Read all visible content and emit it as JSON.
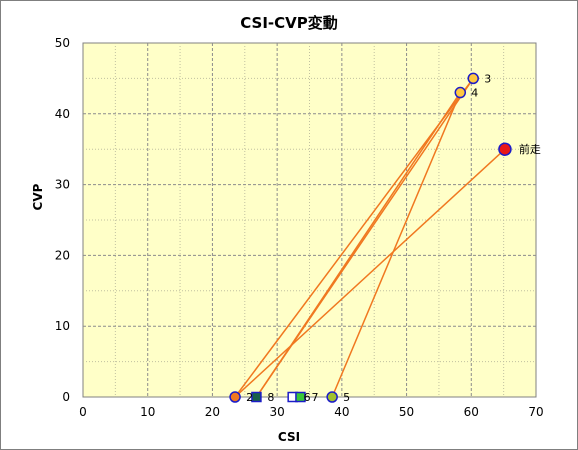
{
  "chart_data": {
    "type": "scatter",
    "title": "CSI-CVP変動",
    "xlabel": "CSI",
    "ylabel": "CVP",
    "xlim": [
      0,
      70
    ],
    "ylim": [
      0,
      50
    ],
    "xticks": [
      "0",
      "10",
      "20",
      "30",
      "40",
      "50",
      "60",
      "70"
    ],
    "yticks": [
      "0",
      "10",
      "20",
      "30",
      "40",
      "50"
    ],
    "grid": true,
    "plot_background": "#ffffc8",
    "line_color": "#f07820",
    "path_order": [
      "前走",
      "2",
      "3",
      "8",
      "4",
      "5"
    ],
    "points": [
      {
        "label": "前走",
        "x": 65.2,
        "y": 35,
        "marker": "circle",
        "fill": "#e81818",
        "stroke": "#1c1cc8"
      },
      {
        "label": "2",
        "x": 23.5,
        "y": 0,
        "marker": "circle",
        "fill": "#f07820",
        "stroke": "#1c1cc8"
      },
      {
        "label": "3",
        "x": 60.3,
        "y": 45,
        "marker": "circle",
        "fill": "#ffc840",
        "stroke": "#1c1cc8"
      },
      {
        "label": "4",
        "x": 58.3,
        "y": 43,
        "marker": "circle",
        "fill": "#ffc840",
        "stroke": "#1c1cc8"
      },
      {
        "label": "5",
        "x": 38.5,
        "y": 0,
        "marker": "circle",
        "fill": "#a0c030",
        "stroke": "#1c1cc8"
      },
      {
        "label": "6",
        "x": 32.4,
        "y": 0,
        "marker": "square",
        "fill": "#ffffff",
        "stroke": "#1c1cc8"
      },
      {
        "label": "7",
        "x": 33.6,
        "y": 0,
        "marker": "square",
        "fill": "#38c838",
        "stroke": "#1c1cc8"
      },
      {
        "label": "8",
        "x": 26.8,
        "y": 0,
        "marker": "square",
        "fill": "#186048",
        "stroke": "#1c1cc8"
      }
    ]
  }
}
